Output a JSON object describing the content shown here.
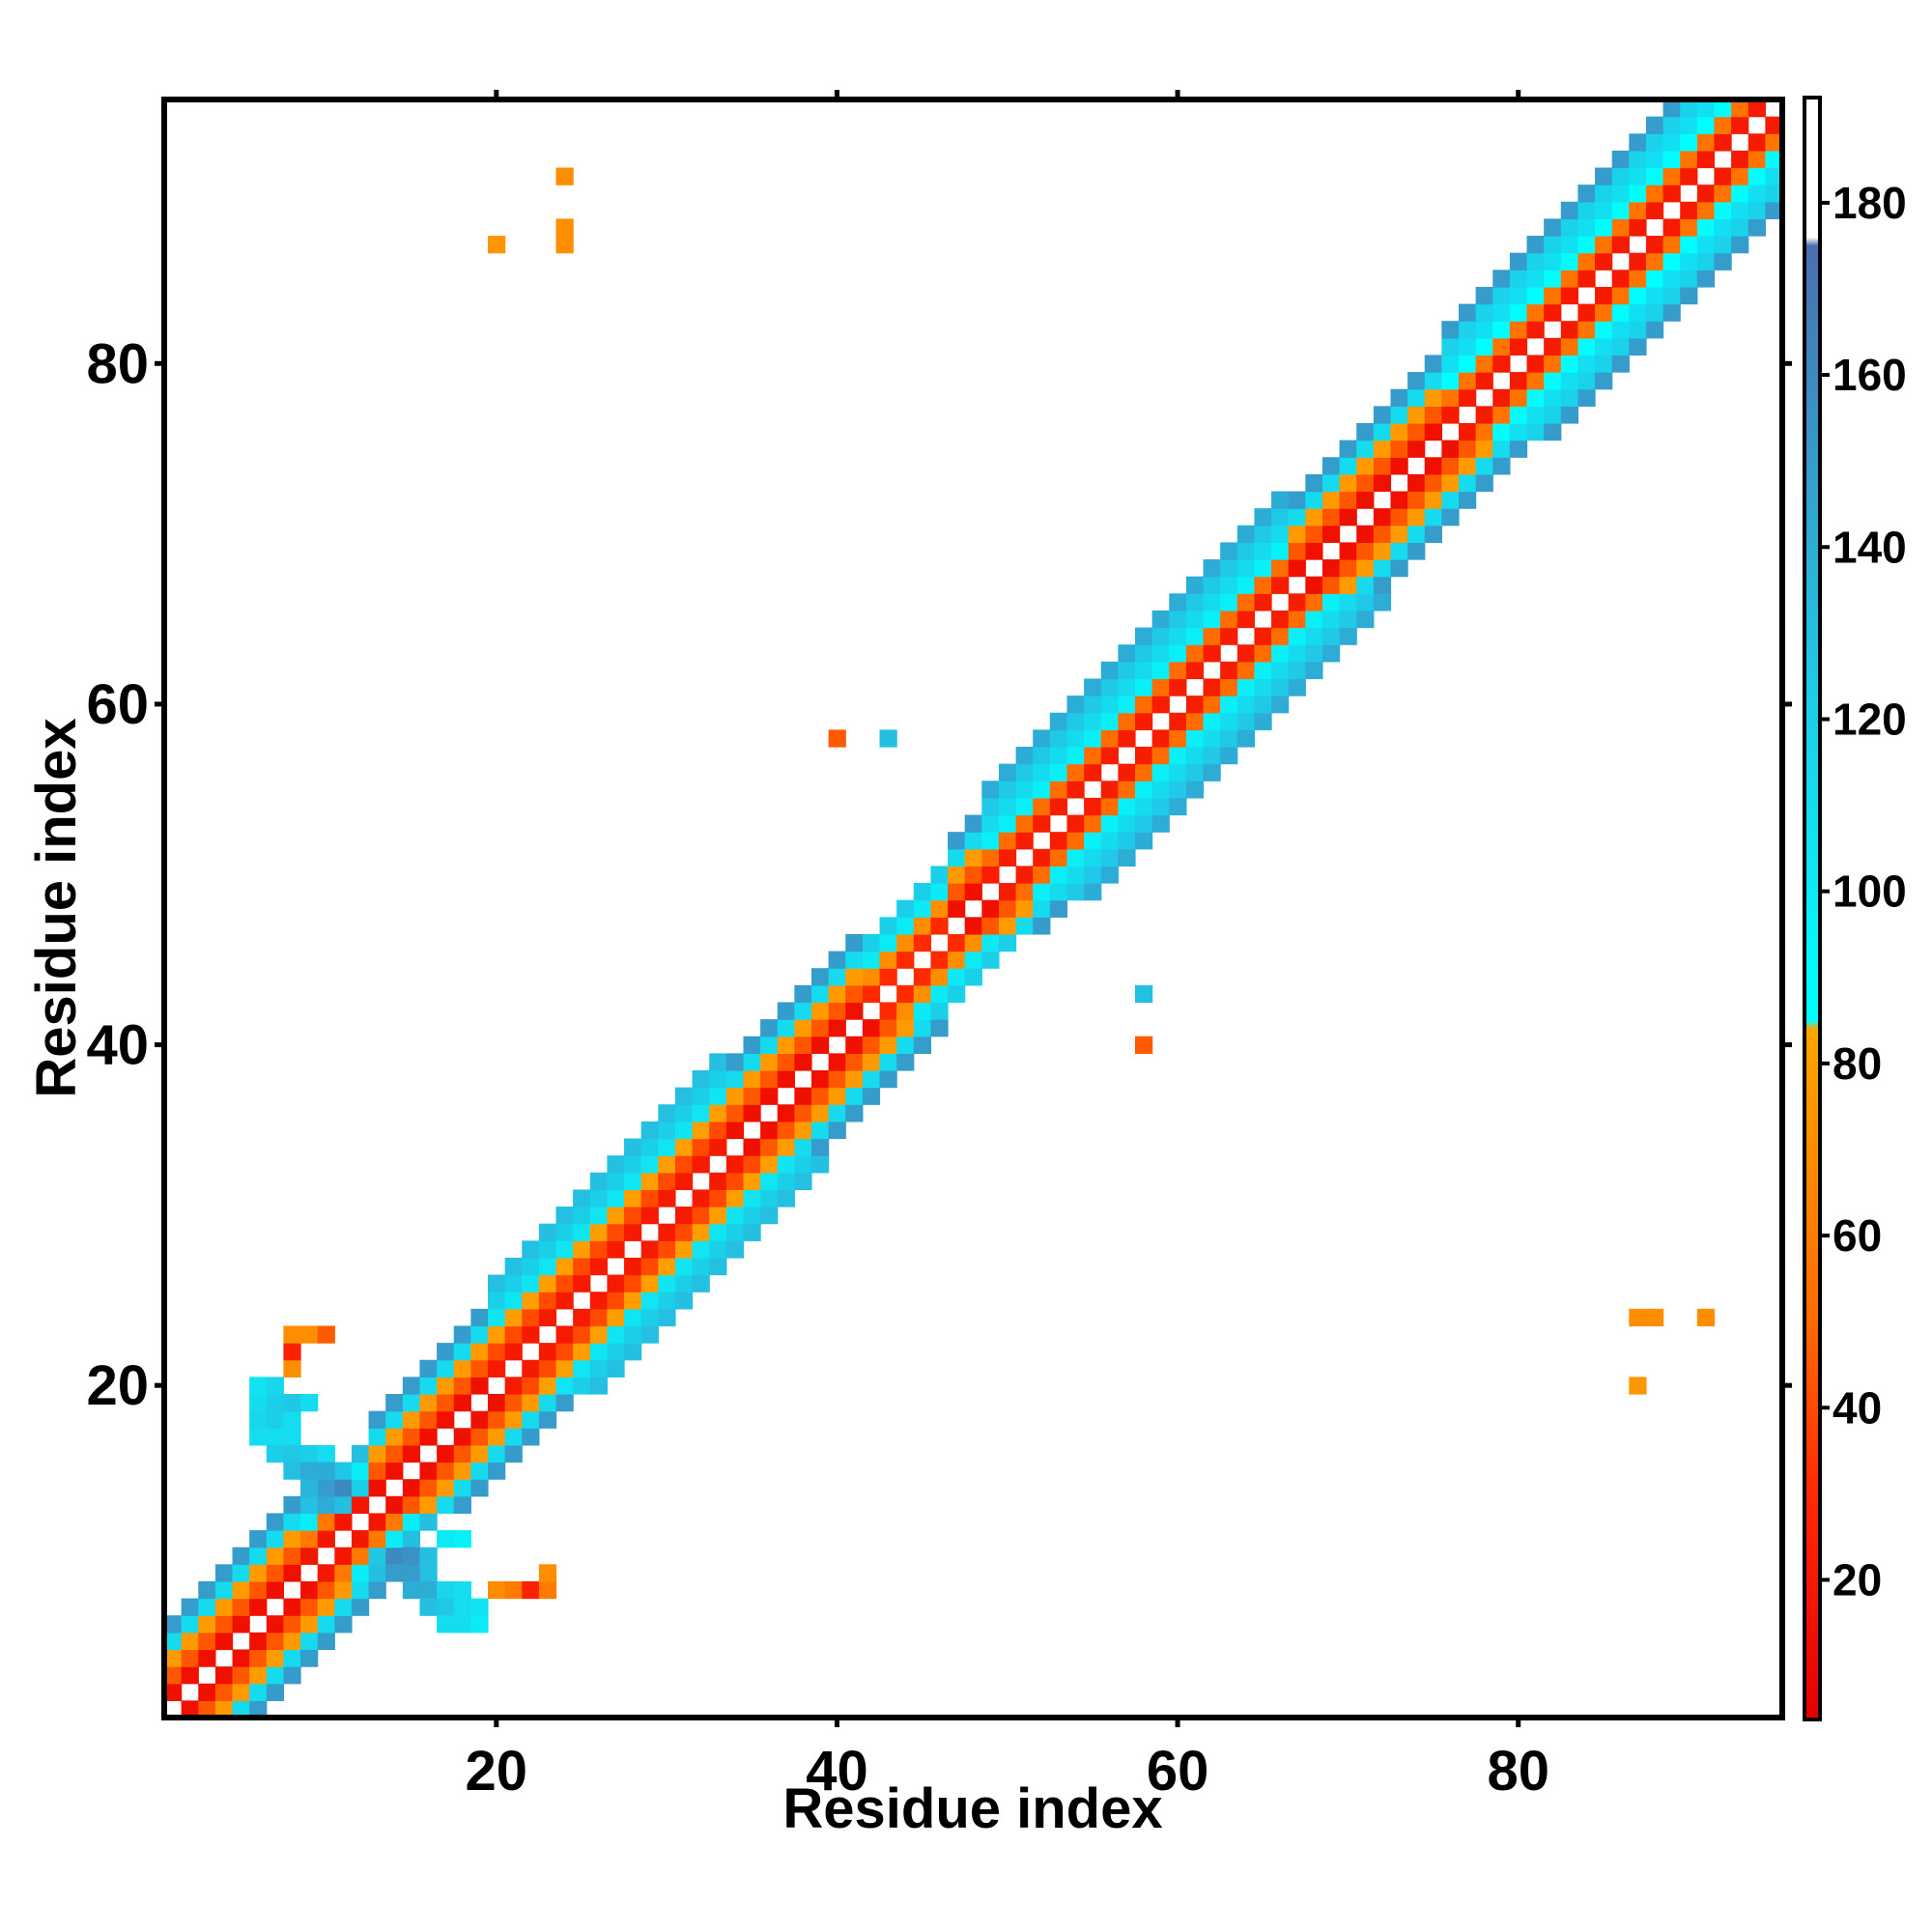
{
  "chart_data": {
    "type": "heatmap",
    "title": "",
    "xlabel": "Residue index",
    "ylabel": "Residue index",
    "xlim": [
      0.5,
      95.5
    ],
    "ylim": [
      0.5,
      95.5
    ],
    "x_ticks": [
      20,
      40,
      60,
      80
    ],
    "y_ticks": [
      20,
      40,
      60,
      80
    ],
    "x_tick_labels": [
      "20",
      "40",
      "60",
      "80"
    ],
    "y_tick_labels": [
      "20",
      "40",
      "60",
      "80"
    ],
    "colorbar": {
      "range": [
        4,
        192
      ],
      "ticks": [
        20,
        40,
        60,
        80,
        100,
        120,
        140,
        160,
        180
      ],
      "tick_labels": [
        "20",
        "40",
        "60",
        "80",
        "100",
        "120",
        "140",
        "160",
        "180"
      ],
      "stops": [
        {
          "value": 4,
          "color": "#e60000"
        },
        {
          "value": 30,
          "color": "#ff2a00"
        },
        {
          "value": 50,
          "color": "#ff6a00"
        },
        {
          "value": 84,
          "color": "#ffa500"
        },
        {
          "value": 85,
          "color": "#00ffff"
        },
        {
          "value": 125,
          "color": "#20c8e6"
        },
        {
          "value": 175,
          "color": "#4a6fb0"
        },
        {
          "value": 176,
          "color": "#ffffff"
        },
        {
          "value": 192,
          "color": "#ffffff"
        }
      ]
    },
    "near_diagonal": {
      "max_offset": 5,
      "offset_values": [
        14,
        44,
        78,
        112,
        150
      ],
      "sheet_regions": [
        {
          "from": 9,
          "to": 12,
          "max_offset": 4,
          "offset_values": [
            18,
            58,
            98,
            130
          ]
        },
        {
          "from": 20,
          "to": 33,
          "max_offset": 6,
          "offset_values": [
            20,
            40,
            80,
            104,
            120,
            130
          ]
        },
        {
          "from": 42,
          "to": 46,
          "max_offset": 4,
          "offset_values": [
            30,
            70,
            100,
            120
          ]
        },
        {
          "from": 49,
          "to": 66,
          "max_offset": 6,
          "offset_values": [
            22,
            52,
            96,
            112,
            124,
            140
          ]
        },
        {
          "from": 76,
          "to": 95,
          "max_offset": 6,
          "offset_values": [
            20,
            56,
            86,
            108,
            118,
            150
          ]
        }
      ]
    },
    "off_diagonal_contacts": [
      {
        "i": 6,
        "j": 17,
        "value": 110
      },
      {
        "i": 7,
        "j": 17,
        "value": 110
      },
      {
        "i": 8,
        "j": 17,
        "value": 110
      },
      {
        "i": 6,
        "j": 18,
        "value": 115
      },
      {
        "i": 7,
        "j": 18,
        "value": 120
      },
      {
        "i": 8,
        "j": 18,
        "value": 110
      },
      {
        "i": 6,
        "j": 19,
        "value": 110
      },
      {
        "i": 7,
        "j": 19,
        "value": 120
      },
      {
        "i": 8,
        "j": 19,
        "value": 125
      },
      {
        "i": 9,
        "j": 19,
        "value": 110
      },
      {
        "i": 6,
        "j": 20,
        "value": 105
      },
      {
        "i": 7,
        "j": 20,
        "value": 115
      },
      {
        "i": 8,
        "j": 21,
        "value": 70
      },
      {
        "i": 8,
        "j": 22,
        "value": 25
      },
      {
        "i": 8,
        "j": 23,
        "value": 70
      },
      {
        "i": 9,
        "j": 23,
        "value": 70
      },
      {
        "i": 10,
        "j": 23,
        "value": 45
      },
      {
        "i": 7,
        "j": 16,
        "value": 120
      },
      {
        "i": 8,
        "j": 16,
        "value": 125
      },
      {
        "i": 9,
        "j": 16,
        "value": 120
      },
      {
        "i": 10,
        "j": 16,
        "value": 110
      },
      {
        "i": 8,
        "j": 15,
        "value": 130
      },
      {
        "i": 9,
        "j": 15,
        "value": 140
      },
      {
        "i": 10,
        "j": 15,
        "value": 140
      },
      {
        "i": 11,
        "j": 15,
        "value": 125
      },
      {
        "i": 9,
        "j": 14,
        "value": 135
      },
      {
        "i": 10,
        "j": 14,
        "value": 150
      },
      {
        "i": 11,
        "j": 14,
        "value": 160
      },
      {
        "i": 12,
        "j": 14,
        "value": 120
      },
      {
        "i": 9,
        "j": 13,
        "value": 130
      },
      {
        "i": 10,
        "j": 13,
        "value": 140
      },
      {
        "i": 11,
        "j": 13,
        "value": 130
      },
      {
        "i": 13,
        "j": 9,
        "value": 130
      },
      {
        "i": 14,
        "j": 9,
        "value": 150
      },
      {
        "i": 15,
        "j": 9,
        "value": 150
      },
      {
        "i": 16,
        "j": 9,
        "value": 130
      },
      {
        "i": 13,
        "j": 10,
        "value": 125
      },
      {
        "i": 14,
        "j": 10,
        "value": 160
      },
      {
        "i": 15,
        "j": 10,
        "value": 155
      },
      {
        "i": 16,
        "j": 10,
        "value": 130
      },
      {
        "i": 15,
        "j": 8,
        "value": 140
      },
      {
        "i": 16,
        "j": 8,
        "value": 140
      },
      {
        "i": 17,
        "j": 8,
        "value": 115
      },
      {
        "i": 18,
        "j": 8,
        "value": 110
      },
      {
        "i": 16,
        "j": 7,
        "value": 130
      },
      {
        "i": 17,
        "j": 7,
        "value": 125
      },
      {
        "i": 18,
        "j": 7,
        "value": 110
      },
      {
        "i": 19,
        "j": 7,
        "value": 105
      },
      {
        "i": 17,
        "j": 6,
        "value": 110
      },
      {
        "i": 18,
        "j": 6,
        "value": 110
      },
      {
        "i": 19,
        "j": 6,
        "value": 100
      },
      {
        "i": 17,
        "j": 11,
        "value": 100
      },
      {
        "i": 18,
        "j": 11,
        "value": 95
      },
      {
        "i": 20,
        "j": 8,
        "value": 70
      },
      {
        "i": 21,
        "j": 8,
        "value": 60
      },
      {
        "i": 22,
        "j": 8,
        "value": 25
      },
      {
        "i": 23,
        "j": 8,
        "value": 60
      },
      {
        "i": 23,
        "j": 9,
        "value": 70
      },
      {
        "i": 24,
        "j": 91,
        "value": 70
      },
      {
        "i": 24,
        "j": 88,
        "value": 70
      },
      {
        "i": 24,
        "j": 87,
        "value": 70
      },
      {
        "i": 20,
        "j": 87,
        "value": 75
      },
      {
        "i": 91,
        "j": 24,
        "value": 70
      },
      {
        "i": 88,
        "j": 24,
        "value": 70
      },
      {
        "i": 87,
        "j": 24,
        "value": 70
      },
      {
        "i": 87,
        "j": 20,
        "value": 75
      },
      {
        "i": 58,
        "j": 40,
        "value": 45
      },
      {
        "i": 58,
        "j": 43,
        "value": 130
      },
      {
        "i": 40,
        "j": 58,
        "value": 45
      },
      {
        "i": 43,
        "j": 58,
        "value": 130
      }
    ]
  }
}
